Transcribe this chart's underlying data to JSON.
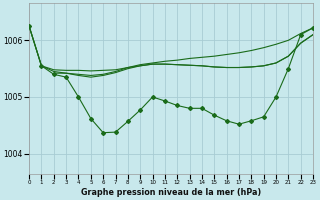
{
  "background_color": "#c8e8ec",
  "grid_color": "#a8ccd4",
  "line_color": "#1a6b1a",
  "title": "Graphe pression niveau de la mer (hPa)",
  "xlim": [
    0,
    23
  ],
  "ylim": [
    1003.65,
    1006.65
  ],
  "yticks": [
    1004,
    1005,
    1006
  ],
  "xticks": [
    0,
    1,
    2,
    3,
    4,
    5,
    6,
    7,
    8,
    9,
    10,
    11,
    12,
    13,
    14,
    15,
    16,
    17,
    18,
    19,
    20,
    21,
    22,
    23
  ],
  "line_jagged_x": [
    0,
    1,
    2,
    3,
    4,
    5,
    6,
    7,
    8,
    9,
    10,
    11,
    12,
    13,
    14,
    15,
    16,
    17,
    18,
    19,
    20,
    21,
    22,
    23
  ],
  "line_jagged_y": [
    1006.25,
    1005.55,
    1005.4,
    1005.35,
    1005.0,
    1004.62,
    1004.37,
    1004.38,
    1004.57,
    1004.77,
    1005.0,
    1004.93,
    1004.85,
    1004.8,
    1004.8,
    1004.68,
    1004.58,
    1004.52,
    1004.58,
    1004.65,
    1005.0,
    1005.5,
    1006.1,
    1006.22
  ],
  "line_flat1_x": [
    0,
    1,
    2,
    3,
    4,
    5,
    6,
    7,
    8,
    9,
    10,
    11,
    12,
    13,
    14,
    15,
    16,
    17,
    18,
    19,
    20,
    21,
    22,
    23
  ],
  "line_flat1_y": [
    1006.25,
    1005.55,
    1005.45,
    1005.42,
    1005.4,
    1005.38,
    1005.4,
    1005.45,
    1005.52,
    1005.57,
    1005.6,
    1005.63,
    1005.65,
    1005.68,
    1005.7,
    1005.72,
    1005.75,
    1005.78,
    1005.82,
    1005.87,
    1005.93,
    1006.0,
    1006.12,
    1006.22
  ],
  "line_flat2_x": [
    0,
    1,
    2,
    3,
    4,
    5,
    6,
    7,
    8,
    9,
    10,
    11,
    12,
    13,
    14,
    15,
    16,
    17,
    18,
    19,
    20,
    21,
    22,
    23
  ],
  "line_flat2_y": [
    1006.25,
    1005.55,
    1005.48,
    1005.47,
    1005.47,
    1005.46,
    1005.47,
    1005.48,
    1005.52,
    1005.55,
    1005.58,
    1005.58,
    1005.57,
    1005.56,
    1005.55,
    1005.53,
    1005.52,
    1005.52,
    1005.53,
    1005.55,
    1005.6,
    1005.72,
    1005.95,
    1006.1
  ],
  "line_flat3_x": [
    2,
    3,
    4,
    5,
    6,
    7,
    8,
    9,
    10,
    11,
    12,
    13,
    14,
    15,
    16,
    17,
    18,
    19,
    20,
    21,
    22,
    23
  ],
  "line_flat3_y": [
    1005.42,
    1005.42,
    1005.38,
    1005.35,
    1005.38,
    1005.43,
    1005.5,
    1005.55,
    1005.58,
    1005.58,
    1005.57,
    1005.56,
    1005.55,
    1005.53,
    1005.52,
    1005.52,
    1005.53,
    1005.55,
    1005.6,
    1005.72,
    1005.95,
    1006.1
  ]
}
